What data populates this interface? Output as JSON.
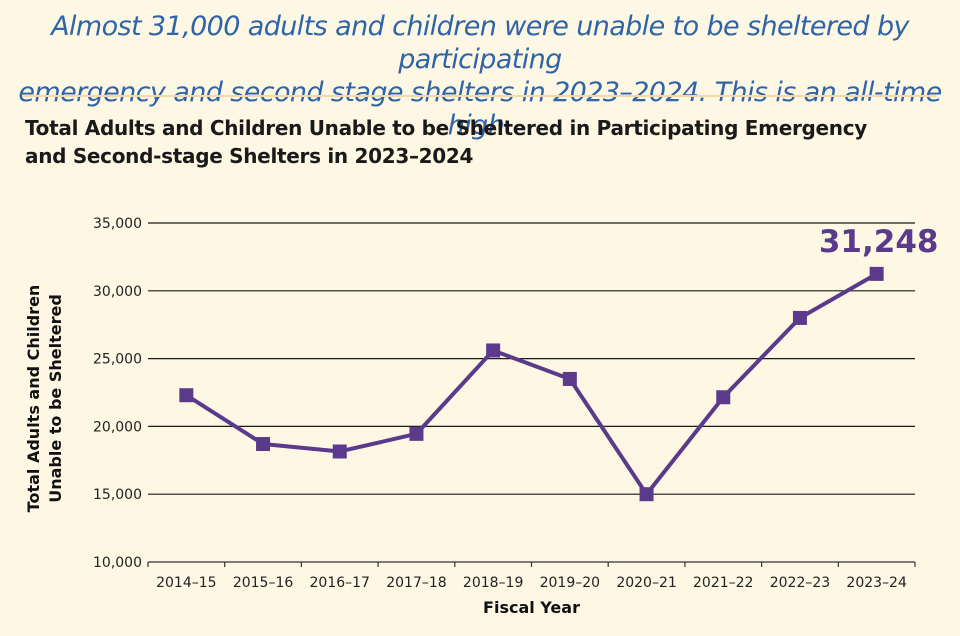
{
  "headline": {
    "line1": "Almost 31,000 adults and children were unable to be sheltered by participating",
    "line2": "emergency and second stage shelters in 2023–2024. This is an all-time high."
  },
  "chart_data": {
    "type": "line",
    "title_line1": "Total Adults and Children Unable to be Sheltered in Participating Emergency",
    "title_line2": "and Second-stage Shelters in 2023–2024",
    "xlabel": "Fiscal Year",
    "ylabel_line1": "Total Adults and Children",
    "ylabel_line2": "Unable to be Sheltered",
    "ylim": [
      10000,
      35000
    ],
    "yticks": [
      10000,
      15000,
      20000,
      25000,
      30000,
      35000
    ],
    "ytick_labels": [
      "10,000",
      "15,000",
      "20,000",
      "25,000",
      "30,000",
      "35,000"
    ],
    "categories": [
      "2014–15",
      "2015–16",
      "2016–17",
      "2017–18",
      "2018–19",
      "2019–20",
      "2020–21",
      "2021–22",
      "2022–23",
      "2023–24"
    ],
    "series": [
      {
        "name": "Total Adults and Children Unable to be Sheltered",
        "values": [
          22300,
          18700,
          18150,
          19450,
          25600,
          23500,
          15000,
          22150,
          28000,
          31248
        ]
      }
    ],
    "annotation": {
      "category": "2023–24",
      "text": "31,248"
    },
    "colors": {
      "line": "#5b3a8c",
      "grid": "#1a1a1a"
    }
  }
}
